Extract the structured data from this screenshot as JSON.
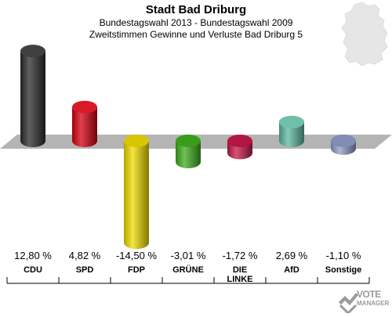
{
  "chart_data": {
    "type": "bar",
    "title": "Stadt Bad Driburg",
    "subtitle": "Bundestagswahl 2013 - Bundestagswahl 2009",
    "subtitle2": "Zweitstimmen Gewinne und Verluste Bad Driburg 5",
    "categories": [
      "CDU",
      "SPD",
      "FDP",
      "GRÜNE",
      "DIE LINKE",
      "AfD",
      "Sonstige"
    ],
    "values": [
      12.8,
      4.82,
      -14.5,
      -3.01,
      -1.72,
      2.69,
      -1.1
    ],
    "value_labels": [
      "12,80 %",
      "4,82 %",
      "-14,50 %",
      "-3,01 %",
      "-1,72 %",
      "2,69 %",
      "-1,10 %"
    ],
    "colors": [
      "#2b2b2b",
      "#d40010",
      "#f0dc00",
      "#3fae1e",
      "#c8184a",
      "#5fb8a0",
      "#8f9cc6"
    ],
    "ylim": [
      -14.5,
      12.8
    ],
    "grid": false,
    "legend": "none"
  },
  "logo": {
    "line1": "VOTE",
    "line2": "MANAGER"
  }
}
